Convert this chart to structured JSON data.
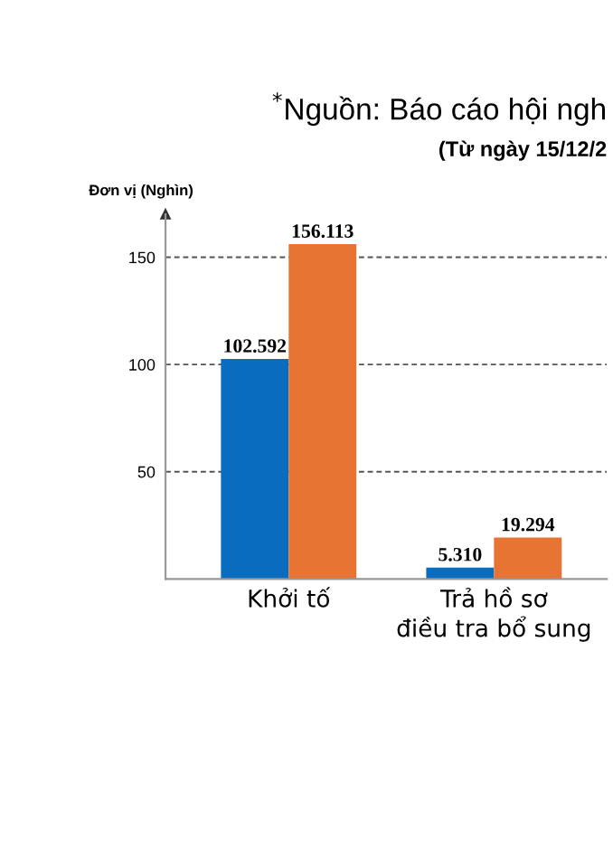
{
  "chart_data": {
    "type": "bar",
    "title": "$^{*}$Nguồn: Báo cáo hội ngh",
    "subtitle": "(Từ ngày 15/12/2",
    "ylabel": "Đơn vị (Nghìn)",
    "categories": [
      "Khởi tố",
      "Trả hồ sơ\nđiều tra bổ sung"
    ],
    "series": [
      {
        "color": "#0a6cbf",
        "values": [
          102.592,
          5.31
        ],
        "value_labels": [
          "102.592",
          "5.310"
        ]
      },
      {
        "color": "#e87434",
        "values": [
          156.113,
          19.294
        ],
        "value_labels": [
          "156.113",
          "19.294"
        ]
      }
    ],
    "ylim": [
      0,
      170
    ],
    "yticks": [
      50,
      100,
      150
    ],
    "grid": "y",
    "legend": false
  }
}
